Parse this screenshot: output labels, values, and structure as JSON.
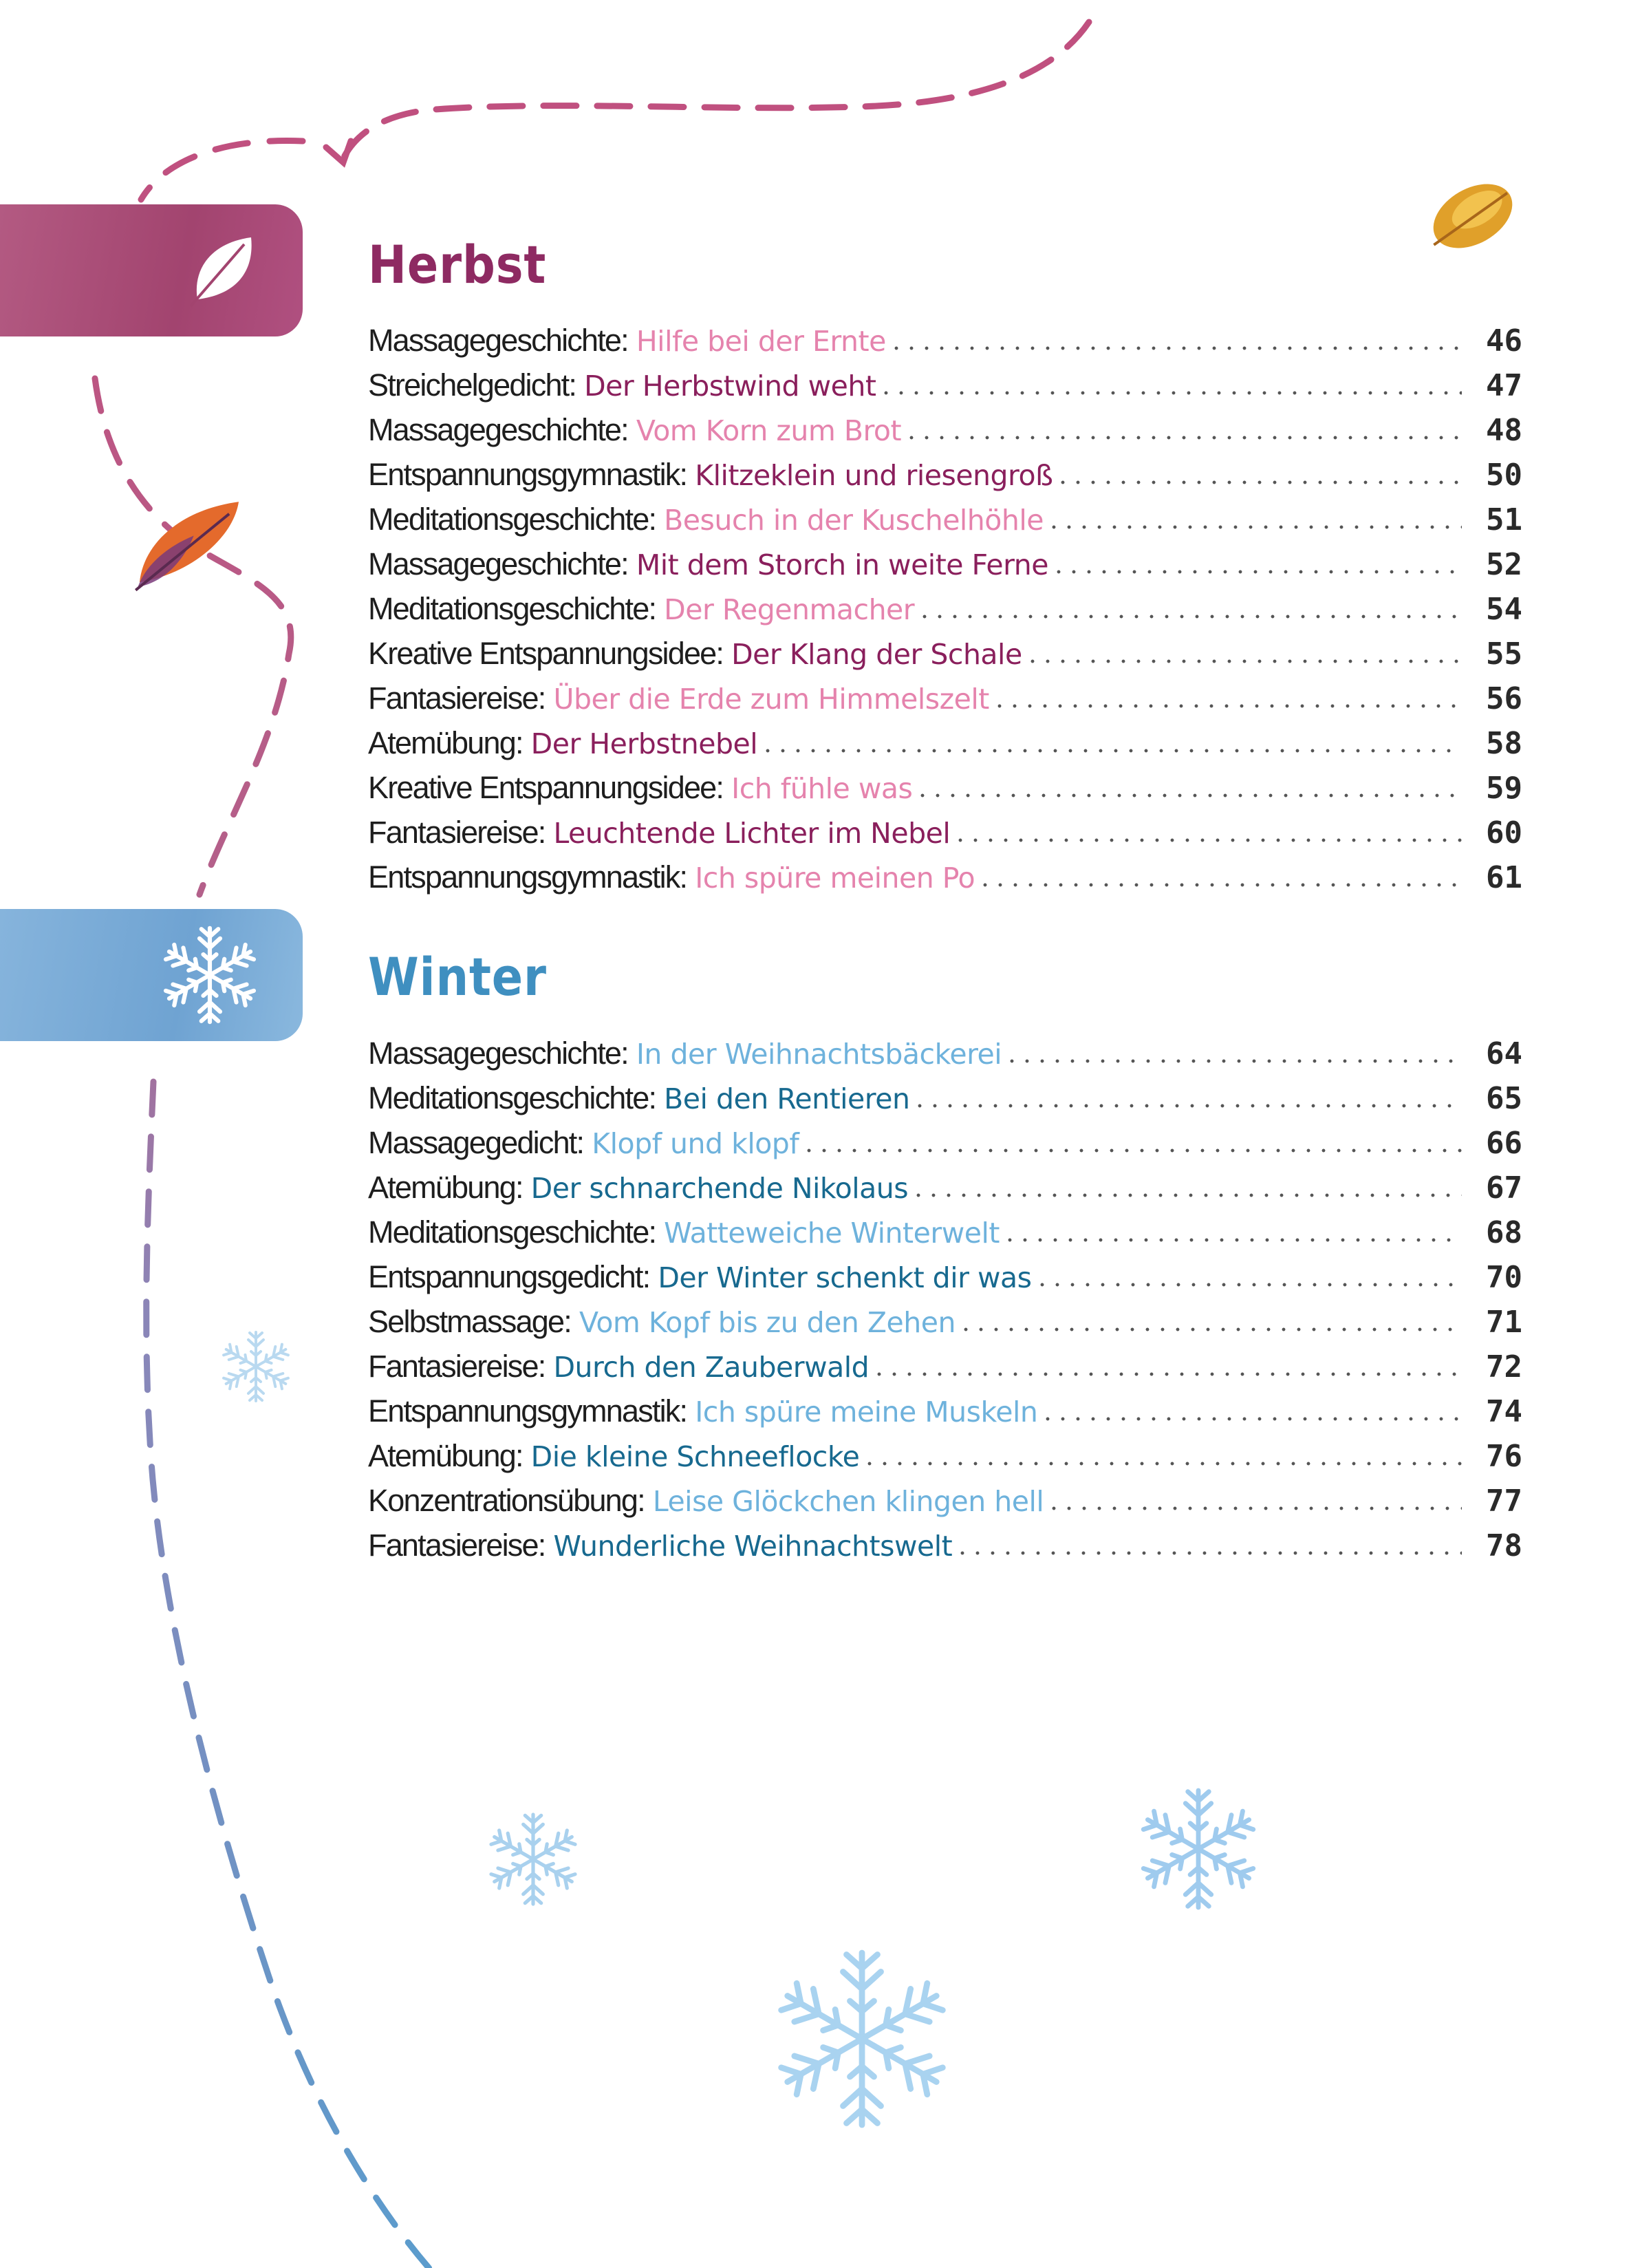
{
  "colors": {
    "herbst_tab": "#a2446f",
    "herbst_title": "#8e2a62",
    "herbst_light": "#e583ad",
    "herbst_dark": "#8a1f5c",
    "winter_tab": "#6fa3d2",
    "winter_title": "#3f8fc0",
    "winter_light": "#6eb2dc",
    "winter_dark": "#17698f"
  },
  "herbst": {
    "title": "Herbst",
    "tab_icon": "leaf-icon",
    "entries": [
      {
        "category": "Massagegeschichte:",
        "title": "Hilfe bei der Ernte",
        "page": "46",
        "tone": "light"
      },
      {
        "category": "Streichelgedicht:",
        "title": "Der Herbstwind weht",
        "page": "47",
        "tone": "dark"
      },
      {
        "category": "Massagegeschichte:",
        "title": "Vom Korn zum Brot",
        "page": "48",
        "tone": "light"
      },
      {
        "category": "Entspannungsgymnastik:",
        "title": "Klitzeklein und riesengroß",
        "page": "50",
        "tone": "dark"
      },
      {
        "category": "Meditationsgeschichte:",
        "title": "Besuch in der Kuschelhöhle",
        "page": "51",
        "tone": "light"
      },
      {
        "category": "Massagegeschichte:",
        "title": "Mit dem Storch in weite Ferne",
        "page": "52",
        "tone": "dark"
      },
      {
        "category": "Meditationsgeschichte:",
        "title": "Der Regenmacher",
        "page": "54",
        "tone": "light"
      },
      {
        "category": "Kreative Entspannungsidee:",
        "title": "Der Klang der Schale",
        "page": "55",
        "tone": "dark"
      },
      {
        "category": "Fantasiereise:",
        "title": "Über die Erde zum Himmelszelt",
        "page": "56",
        "tone": "light"
      },
      {
        "category": "Atemübung:",
        "title": "Der Herbstnebel",
        "page": "58",
        "tone": "dark"
      },
      {
        "category": "Kreative Entspannungsidee:",
        "title": "Ich fühle was",
        "page": "59",
        "tone": "light"
      },
      {
        "category": "Fantasiereise:",
        "title": "Leuchtende Lichter im Nebel",
        "page": "60",
        "tone": "dark"
      },
      {
        "category": "Entspannungsgymnastik:",
        "title": "Ich spüre meinen Po",
        "page": "61",
        "tone": "light"
      }
    ]
  },
  "winter": {
    "title": "Winter",
    "tab_icon": "snowflake-icon",
    "entries": [
      {
        "category": "Massagegeschichte:",
        "title": "In der Weihnachtsbäckerei",
        "page": "64",
        "tone": "light"
      },
      {
        "category": "Meditationsgeschichte:",
        "title": "Bei den Rentieren",
        "page": "65",
        "tone": "dark"
      },
      {
        "category": "Massagegedicht:",
        "title": "Klopf und klopf",
        "page": "66",
        "tone": "light"
      },
      {
        "category": "Atemübung:",
        "title": "Der schnarchende Nikolaus",
        "page": "67",
        "tone": "dark"
      },
      {
        "category": "Meditationsgeschichte:",
        "title": "Watteweiche Winterwelt",
        "page": "68",
        "tone": "light"
      },
      {
        "category": "Entspannungsgedicht:",
        "title": "Der Winter schenkt dir was",
        "page": "70",
        "tone": "dark"
      },
      {
        "category": "Selbstmassage:",
        "title": "Vom Kopf bis zu den Zehen",
        "page": "71",
        "tone": "light"
      },
      {
        "category": "Fantasiereise:",
        "title": "Durch den Zauberwald",
        "page": "72",
        "tone": "dark"
      },
      {
        "category": "Entspannungsgymnastik:",
        "title": "Ich spüre meine Muskeln",
        "page": "74",
        "tone": "light"
      },
      {
        "category": "Atemübung:",
        "title": "Die kleine Schneeflocke",
        "page": "76",
        "tone": "dark"
      },
      {
        "category": "Konzentrationsübung:",
        "title": "Leise Glöckchen klingen hell",
        "page": "77",
        "tone": "light"
      },
      {
        "category": "Fantasiereise:",
        "title": "Wunderliche Weihnachtswelt",
        "page": "78",
        "tone": "dark"
      }
    ]
  }
}
